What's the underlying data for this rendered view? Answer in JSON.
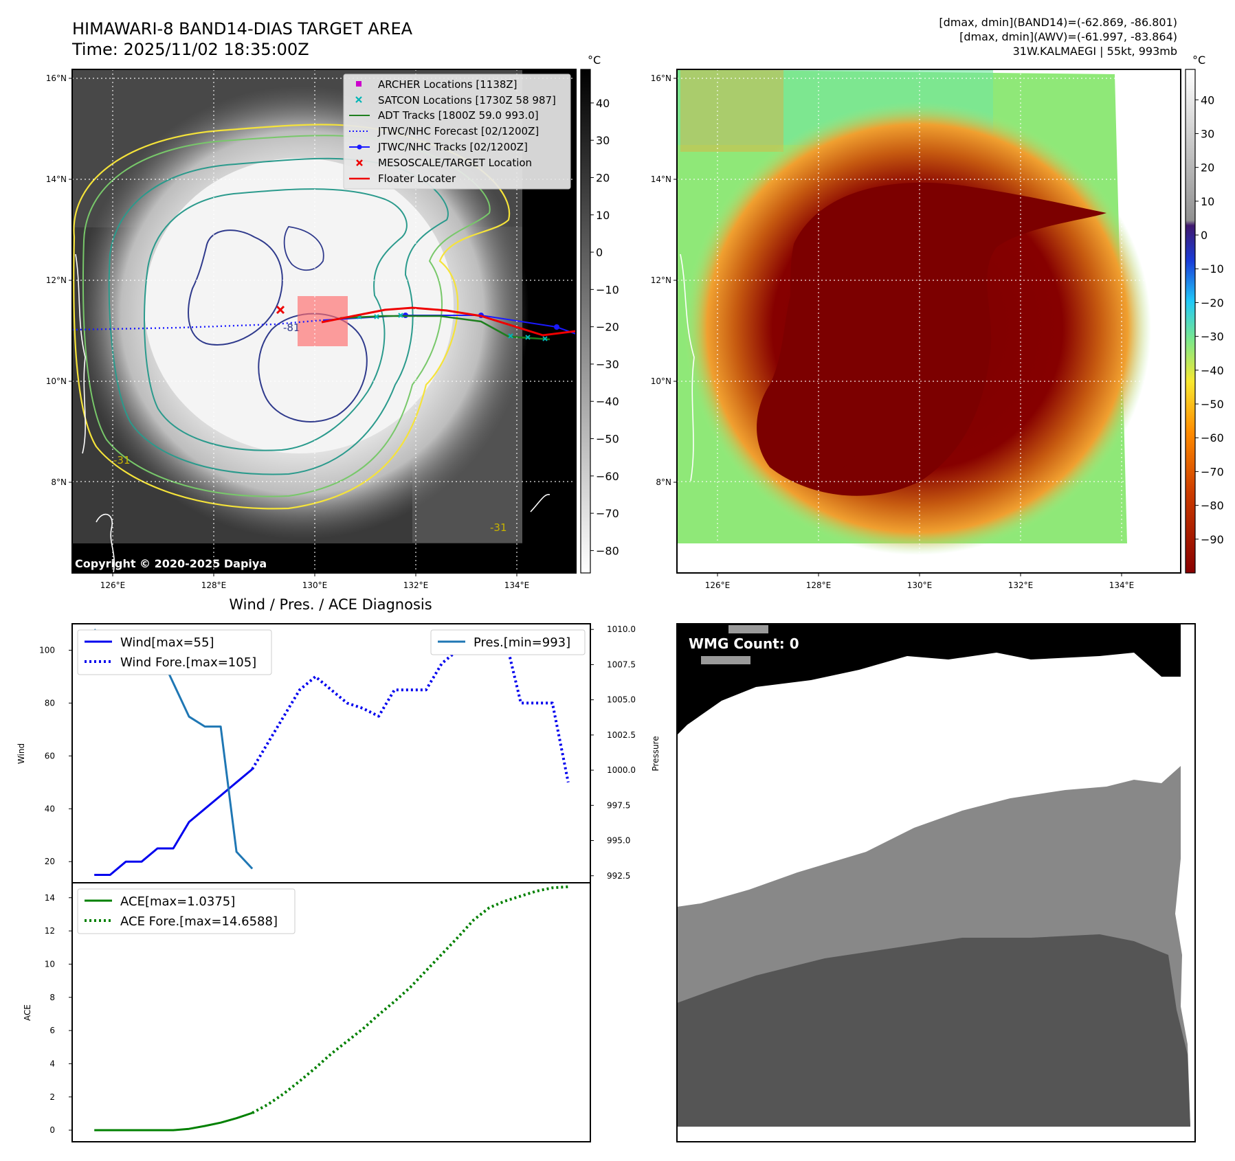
{
  "header": {
    "title_line1": "HIMAWARI-8 BAND14-DIAS TARGET AREA",
    "title_line2": "Time: 2025/11/02 18:35:00Z",
    "info_line1": "[dmax, dmin](BAND14)=(-62.869, -86.801)",
    "info_line2": "[dmax, dmin](AWV)=(-61.997, -83.864)",
    "info_line3": "31W.KALMAEGI | 55kt, 993mb",
    "copyright": "Copyright © 2020-2025 Dapiya"
  },
  "colors": {
    "wind": "#0000ee",
    "pressure": "#1f77b4",
    "ace": "#008000",
    "adt": "#1e7f1e",
    "archer": "#cc00cc",
    "satcon": "#00b5b5",
    "jtwc": "#1a1aff",
    "floater": "#ee0000",
    "target": "#ee0000"
  },
  "maps": {
    "lat_labels": [
      "16°N",
      "14°N",
      "12°N",
      "10°N",
      "8°N"
    ],
    "lat_values": [
      16,
      14,
      12,
      10,
      8
    ],
    "lon_labels": [
      "126°E",
      "128°E",
      "130°E",
      "132°E",
      "134°E"
    ],
    "lon_values": [
      126,
      128,
      130,
      132,
      134
    ],
    "unit": "°C",
    "contour_labels": [
      "-81",
      "-31",
      "-31"
    ],
    "left_colorbar_ticks": [
      "40",
      "30",
      "20",
      "10",
      "0",
      "−10",
      "−20",
      "−30",
      "−40",
      "−50",
      "−60",
      "−70",
      "−80"
    ],
    "left_colorbar_values": [
      40,
      30,
      20,
      10,
      0,
      -10,
      -20,
      -30,
      -40,
      -50,
      -60,
      -70,
      -80
    ],
    "right_colorbar_ticks": [
      "40",
      "30",
      "20",
      "10",
      "0",
      "−10",
      "−20",
      "−30",
      "−40",
      "−50",
      "−60",
      "−70",
      "−80",
      "−90"
    ],
    "right_colorbar_values": [
      40,
      30,
      20,
      10,
      0,
      -10,
      -20,
      -30,
      -40,
      -50,
      -60,
      -70,
      -80,
      -90
    ]
  },
  "legend": {
    "archer": "ARCHER Locations [1138Z]",
    "satcon": "SATCON Locations [1730Z 58 987]",
    "adt": "ADT Tracks [1800Z 59.0 993.0]",
    "jtwc_forecast": "JTWC/NHC Forecast [02/1200Z]",
    "jtwc_tracks": "JTWC/NHC Tracks [02/1200Z]",
    "target": "MESOSCALE/TARGET Location",
    "floater": "Floater Locater"
  },
  "diagnosis": {
    "title": "Wind / Pres. / ACE Diagnosis",
    "wind_ylabel": "Wind",
    "pressure_ylabel": "Pressure",
    "ace_ylabel": "ACE",
    "wind_ticks": [
      "100",
      "80",
      "60",
      "40",
      "20"
    ],
    "wind_tick_values": [
      100,
      80,
      60,
      40,
      20
    ],
    "pressure_ticks": [
      "1010.0",
      "1007.5",
      "1005.0",
      "1002.5",
      "1000.0",
      "997.5",
      "995.0",
      "992.5"
    ],
    "pressure_tick_values": [
      1010.0,
      1007.5,
      1005.0,
      1002.5,
      1000.0,
      997.5,
      995.0,
      992.5
    ],
    "ace_ticks": [
      "14",
      "12",
      "10",
      "8",
      "6",
      "4",
      "2",
      "0"
    ],
    "ace_tick_values": [
      14,
      12,
      10,
      8,
      6,
      4,
      2,
      0
    ],
    "legend_wind": "Wind[max=55]",
    "legend_wind_fore": "Wind Fore.[max=105]",
    "legend_pres": "Pres.[min=993]",
    "legend_ace": "ACE[max=1.0375]",
    "legend_ace_fore": "ACE Fore.[max=14.6588]"
  },
  "wmg": {
    "label": "WMG Count: 0"
  },
  "chart_data": [
    {
      "type": "line",
      "title": "Wind / Pres. / ACE Diagnosis — wind and pressure",
      "xlabel": "",
      "ylabel": "Wind",
      "ylim": [
        12,
        110
      ],
      "y2label": "Pressure",
      "y2lim": [
        992.0,
        1010.4
      ],
      "xlim": [
        -1.4,
        31.4
      ],
      "series": [
        {
          "name": "Wind[max=55]",
          "axis": "left",
          "style": "solid",
          "x": [
            0,
            1,
            2,
            3,
            4,
            5,
            6,
            7,
            8,
            9,
            10
          ],
          "values": [
            15,
            15,
            20,
            20,
            25,
            25,
            35,
            40,
            45,
            50,
            55
          ]
        },
        {
          "name": "Wind Fore.[max=105]",
          "axis": "left",
          "style": "dotted",
          "x": [
            10,
            11,
            12,
            13,
            14,
            15,
            16,
            17,
            18,
            19,
            20,
            21,
            22,
            23,
            24,
            25,
            26,
            27,
            28,
            29,
            30
          ],
          "values": [
            55,
            65,
            75,
            85,
            90,
            85,
            80,
            78,
            75,
            85,
            85,
            85,
            95,
            100,
            100,
            100,
            105,
            80,
            80,
            80,
            50
          ]
        },
        {
          "name": "Pres.[min=993]",
          "axis": "right",
          "style": "solid",
          "x": [
            0,
            1,
            2,
            3,
            4,
            5,
            6,
            7,
            8,
            9,
            10
          ],
          "values": [
            1010,
            1009,
            1009,
            1009,
            1008.6,
            1006.2,
            1003.8,
            1003.1,
            1003.1,
            994.2,
            993
          ]
        }
      ]
    },
    {
      "type": "line",
      "title": "Wind / Pres. / ACE Diagnosis — ACE",
      "xlabel": "",
      "ylabel": "ACE",
      "ylim": [
        -0.7,
        14.9
      ],
      "xlim": [
        -1.4,
        31.4
      ],
      "series": [
        {
          "name": "ACE[max=1.0375]",
          "style": "solid",
          "x": [
            0,
            1,
            2,
            3,
            4,
            5,
            6,
            7,
            8,
            9,
            10
          ],
          "values": [
            0,
            0,
            0,
            0,
            0,
            0,
            0.08,
            0.25,
            0.45,
            0.72,
            1.04
          ]
        },
        {
          "name": "ACE Fore.[max=14.6588]",
          "style": "dotted",
          "x": [
            10,
            11,
            12,
            13,
            14,
            15,
            16,
            17,
            18,
            19,
            20,
            21,
            22,
            23,
            24,
            25,
            26,
            27,
            28,
            29,
            30
          ],
          "values": [
            1.04,
            1.55,
            2.2,
            2.95,
            3.75,
            4.6,
            5.35,
            6.1,
            6.95,
            7.75,
            8.6,
            9.6,
            10.6,
            11.6,
            12.65,
            13.4,
            13.8,
            14.1,
            14.4,
            14.6,
            14.66
          ]
        }
      ]
    }
  ]
}
